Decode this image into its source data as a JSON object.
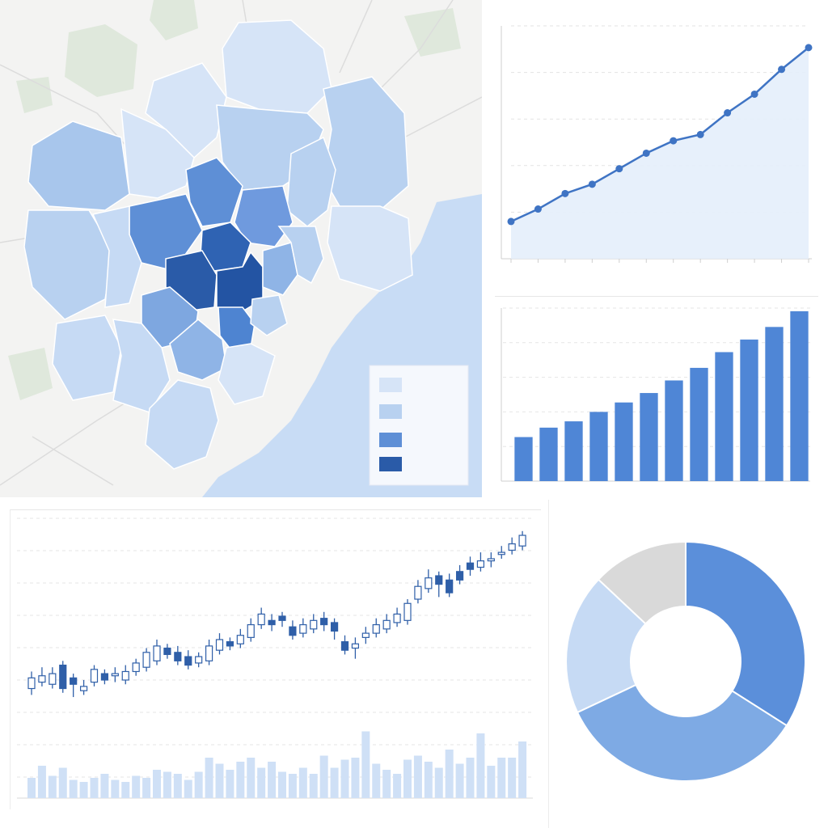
{
  "colors": {
    "scale": [
      "#d6e4f7",
      "#b8d1f0",
      "#5e8fd6",
      "#2a5ba8"
    ],
    "accent": "#4a7fd0",
    "line": "#3f74c4",
    "area": "#e4eefb",
    "bar": "#4f86d6",
    "candle_up": "#ffffff",
    "candle_down": "#2f5fa8",
    "volume": "#cfe0f6",
    "donut": [
      "#5b8fda",
      "#7eaae4",
      "#c6daf4",
      "#d9d9d9"
    ],
    "water": "#c8dcf5",
    "land": "#f3f3f2"
  },
  "map": {
    "legend": {
      "swatches": [
        {
          "color": "#d6e4f7"
        },
        {
          "color": "#b8d1f0"
        },
        {
          "color": "#5e8fd6"
        },
        {
          "color": "#2a5ba8"
        }
      ]
    }
  },
  "chart_data": [
    {
      "type": "area",
      "x": [
        1,
        2,
        3,
        4,
        5,
        6,
        7,
        8,
        9,
        10,
        11,
        12
      ],
      "values": [
        12,
        16,
        21,
        24,
        29,
        34,
        38,
        40,
        47,
        53,
        61,
        68
      ],
      "ylim": [
        0,
        75
      ],
      "grid": true
    },
    {
      "type": "bar",
      "categories": [
        "1",
        "2",
        "3",
        "4",
        "5",
        "6",
        "7",
        "8",
        "9",
        "10",
        "11",
        "12"
      ],
      "values": [
        14,
        17,
        19,
        22,
        25,
        28,
        32,
        36,
        41,
        45,
        49,
        54
      ],
      "ylim": [
        0,
        55
      ],
      "grid": true
    },
    {
      "type": "candlestick",
      "x": [
        1,
        2,
        3,
        4,
        5,
        6,
        7,
        8,
        9,
        10,
        11,
        12,
        13,
        14,
        15,
        16,
        17,
        18,
        19,
        20,
        21,
        22,
        23,
        24,
        25,
        26,
        27,
        28,
        29,
        30,
        31,
        32,
        33,
        34,
        35,
        36,
        37,
        38,
        39,
        40,
        41,
        42,
        43,
        44,
        45,
        46,
        47,
        48
      ],
      "open": [
        15,
        18,
        17,
        26,
        20,
        14,
        18,
        22,
        21,
        19,
        23,
        25,
        28,
        34,
        32,
        30,
        27,
        28,
        33,
        37,
        36,
        39,
        45,
        47,
        49,
        44,
        41,
        43,
        48,
        46,
        37,
        34,
        39,
        41,
        43,
        46,
        47,
        57,
        62,
        68,
        66,
        70,
        74,
        72,
        75,
        78,
        80,
        82
      ],
      "close": [
        20,
        21,
        22,
        15,
        17,
        16,
        24,
        19,
        22,
        23,
        27,
        32,
        35,
        31,
        28,
        26,
        30,
        35,
        38,
        35,
        40,
        45,
        50,
        45,
        47,
        40,
        45,
        47,
        45,
        42,
        33,
        36,
        41,
        45,
        47,
        50,
        55,
        63,
        67,
        64,
        60,
        66,
        71,
        75,
        76,
        79,
        83,
        87
      ],
      "high": [
        23,
        25,
        25,
        28,
        22,
        19,
        26,
        24,
        25,
        26,
        29,
        34,
        38,
        36,
        35,
        33,
        32,
        38,
        41,
        39,
        43,
        48,
        53,
        50,
        51,
        47,
        48,
        50,
        51,
        48,
        40,
        39,
        44,
        48,
        50,
        53,
        57,
        66,
        71,
        70,
        69,
        73,
        77,
        79,
        79,
        82,
        86,
        89
      ],
      "low": [
        12,
        16,
        15,
        13,
        11,
        12,
        16,
        17,
        18,
        17,
        21,
        23,
        26,
        29,
        26,
        24,
        25,
        26,
        31,
        33,
        34,
        37,
        43,
        42,
        44,
        38,
        39,
        41,
        42,
        38,
        31,
        29,
        36,
        39,
        41,
        44,
        45,
        55,
        60,
        58,
        58,
        64,
        68,
        70,
        72,
        76,
        78,
        80
      ],
      "volume": [
        20,
        32,
        22,
        30,
        18,
        16,
        20,
        24,
        18,
        16,
        22,
        20,
        28,
        26,
        24,
        18,
        26,
        40,
        34,
        28,
        36,
        40,
        30,
        36,
        26,
        24,
        30,
        24,
        42,
        30,
        38,
        40,
        66,
        34,
        28,
        24,
        38,
        42,
        36,
        30,
        48,
        34,
        40,
        64,
        32,
        40,
        40,
        56
      ],
      "grid": true
    },
    {
      "type": "pie",
      "values": [
        34,
        34,
        19,
        13
      ],
      "donut": true
    }
  ]
}
